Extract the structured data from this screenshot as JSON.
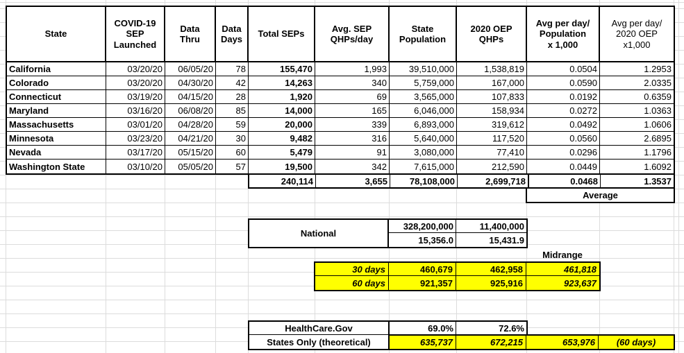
{
  "colors": {
    "highlight": "#ffff00",
    "table_border": "#000000",
    "gridline": "#dcdcdc"
  },
  "main_table": {
    "headers": [
      "State",
      "COVID-19\nSEP\nLaunched",
      "Data\nThru",
      "Data\nDays",
      "Total SEPs",
      "Avg. SEP\nQHPs/day",
      "State\nPopulation",
      "2020 OEP\nQHPs",
      "Avg per day/\nPopulation\nx 1,000",
      "Avg per day/\n2020 OEP\nx1,000"
    ],
    "rows": [
      {
        "state": "California",
        "launched": "03/20/20",
        "thru": "06/05/20",
        "days": "78",
        "total_seps": "155,470",
        "avg_qhps_day": "1,993",
        "population": "39,510,000",
        "oep_qhps": "1,538,819",
        "avg_per_pop": "0.0504",
        "avg_per_oep": "1.2953"
      },
      {
        "state": "Colorado",
        "launched": "03/20/20",
        "thru": "04/30/20",
        "days": "42",
        "total_seps": "14,263",
        "avg_qhps_day": "340",
        "population": "5,759,000",
        "oep_qhps": "167,000",
        "avg_per_pop": "0.0590",
        "avg_per_oep": "2.0335"
      },
      {
        "state": "Connecticut",
        "launched": "03/19/20",
        "thru": "04/15/20",
        "days": "28",
        "total_seps": "1,920",
        "avg_qhps_day": "69",
        "population": "3,565,000",
        "oep_qhps": "107,833",
        "avg_per_pop": "0.0192",
        "avg_per_oep": "0.6359"
      },
      {
        "state": "Maryland",
        "launched": "03/16/20",
        "thru": "06/08/20",
        "days": "85",
        "total_seps": "14,000",
        "avg_qhps_day": "165",
        "population": "6,046,000",
        "oep_qhps": "158,934",
        "avg_per_pop": "0.0272",
        "avg_per_oep": "1.0363"
      },
      {
        "state": "Massachusetts",
        "launched": "03/01/20",
        "thru": "04/28/20",
        "days": "59",
        "total_seps": "20,000",
        "avg_qhps_day": "339",
        "population": "6,893,000",
        "oep_qhps": "319,612",
        "avg_per_pop": "0.0492",
        "avg_per_oep": "1.0606"
      },
      {
        "state": "Minnesota",
        "launched": "03/23/20",
        "thru": "04/21/20",
        "days": "30",
        "total_seps": "9,482",
        "avg_qhps_day": "316",
        "population": "5,640,000",
        "oep_qhps": "117,520",
        "avg_per_pop": "0.0560",
        "avg_per_oep": "2.6895"
      },
      {
        "state": "Nevada",
        "launched": "03/17/20",
        "thru": "05/15/20",
        "days": "60",
        "total_seps": "5,479",
        "avg_qhps_day": "91",
        "population": "3,080,000",
        "oep_qhps": "77,410",
        "avg_per_pop": "0.0296",
        "avg_per_oep": "1.1796"
      },
      {
        "state": "Washington State",
        "launched": "03/10/20",
        "thru": "05/05/20",
        "days": "57",
        "total_seps": "19,500",
        "avg_qhps_day": "342",
        "population": "7,615,000",
        "oep_qhps": "212,590",
        "avg_per_pop": "0.0449",
        "avg_per_oep": "1.6092"
      }
    ],
    "totals": {
      "total_seps": "240,114",
      "avg_qhps_day": "3,655",
      "population": "78,108,000",
      "oep_qhps": "2,699,718",
      "avg_per_pop": "0.0468",
      "avg_per_oep": "1.3537"
    },
    "average_label": "Average"
  },
  "national": {
    "label": "National",
    "population": "328,200,000",
    "oep_qhps": "11,400,000",
    "population_ratio": "15,356.0",
    "oep_ratio": "15,431.9"
  },
  "midrange_label": "Midrange",
  "projections": [
    {
      "label": "30 days",
      "pop_based": "460,679",
      "oep_based": "462,958",
      "midrange": "461,818"
    },
    {
      "label": "60 days",
      "pop_based": "921,357",
      "oep_based": "925,916",
      "midrange": "923,637"
    }
  ],
  "healthcare": {
    "row1_label": "HealthCare.Gov",
    "pct_pop": "69.0%",
    "pct_oep": "72.6%",
    "row2_label": "States Only (theoretical)",
    "pop_based": "635,737",
    "oep_based": "672,215",
    "midrange": "653,976",
    "note": "(60 days)"
  }
}
